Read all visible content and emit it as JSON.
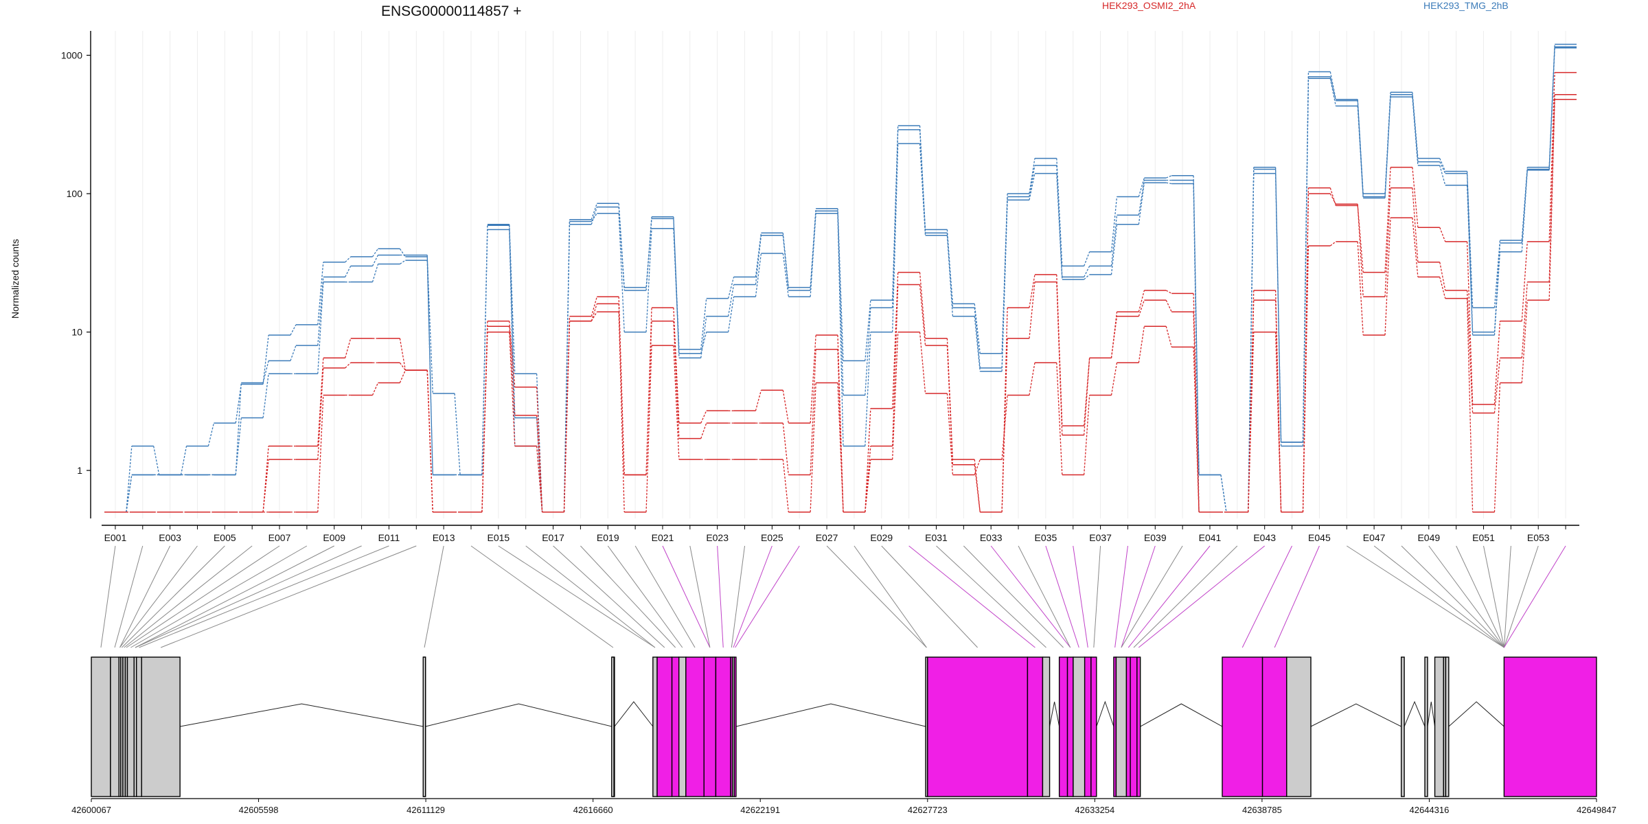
{
  "chart_data": {
    "type": "line",
    "title": "ENSG00000114857 +",
    "ylabel": "Normalized counts",
    "y_scale": "log",
    "ylim": [
      0.45,
      1500
    ],
    "y_ticks": [
      1,
      10,
      100,
      1000
    ],
    "y_tick_labels": [
      "1",
      "10",
      "100",
      "1000"
    ],
    "grid": "vertical-per-exon",
    "legend": [
      {
        "name": "HEK293_OSMI2_2hA",
        "color": "#D62728"
      },
      {
        "name": "HEK293_TMG_2hB",
        "color": "#3B7BB9"
      }
    ],
    "categories": [
      "E001",
      "E002",
      "E003",
      "E004",
      "E005",
      "E006",
      "E007",
      "E008",
      "E009",
      "E010",
      "E011",
      "E012",
      "E013",
      "E014",
      "E015",
      "E016",
      "E017",
      "E018",
      "E019",
      "E020",
      "E021",
      "E022",
      "E023",
      "E024",
      "E025",
      "E026",
      "E027",
      "E028",
      "E029",
      "E030",
      "E031",
      "E032",
      "E033",
      "E034",
      "E035",
      "E036",
      "E037",
      "E038",
      "E039",
      "E040",
      "E041",
      "E042",
      "E043",
      "E044",
      "E045",
      "E046",
      "E047",
      "E048",
      "E049",
      "E050",
      "E051",
      "E052",
      "E053",
      "E054"
    ],
    "x_tick_labels": [
      "E001",
      "E003",
      "E005",
      "E007",
      "E009",
      "E011",
      "E013",
      "E015",
      "E017",
      "E019",
      "E021",
      "E023",
      "E025",
      "E027",
      "E029",
      "E031",
      "E033",
      "E035",
      "E037",
      "E039",
      "E041",
      "E043",
      "E045",
      "E047",
      "E049",
      "E051",
      "E053"
    ],
    "series": [
      {
        "group": "HEK293_TMG_2hB",
        "color": "#3B7BB9",
        "values": [
          0.5,
          1.5,
          0.93,
          1.5,
          2.2,
          4.2,
          9.5,
          11.3,
          32,
          35,
          40,
          35,
          3.6,
          0.93,
          59,
          5,
          0.5,
          65,
          85,
          21,
          66,
          7.5,
          17.5,
          25,
          52,
          21,
          78,
          6.2,
          17,
          310,
          52,
          16,
          7,
          100,
          180,
          30,
          38,
          95,
          130,
          135,
          0.93,
          0.5,
          155,
          1.6,
          760,
          480,
          100,
          540,
          180,
          145,
          15,
          46,
          155,
          1200
        ]
      },
      {
        "group": "HEK293_TMG_2hB",
        "color": "#3B7BB9",
        "values": [
          0.5,
          0.93,
          0.93,
          0.93,
          0.93,
          4.3,
          6.2,
          8,
          25,
          30,
          36,
          36,
          0.93,
          0.93,
          60,
          2.4,
          0.5,
          60,
          80,
          20,
          68,
          6.5,
          13,
          22,
          50,
          20,
          75,
          3.5,
          15,
          290,
          55,
          15,
          5.5,
          95,
          160,
          25,
          30,
          70,
          125,
          125,
          0.93,
          0.5,
          150,
          1.5,
          700,
          470,
          95,
          520,
          170,
          140,
          10,
          44,
          150,
          1150
        ]
      },
      {
        "group": "HEK293_TMG_2hB",
        "color": "#3B7BB9",
        "values": [
          0.5,
          0.93,
          0.93,
          0.93,
          0.93,
          2.4,
          5,
          5,
          23,
          23,
          31,
          33,
          0.93,
          0.93,
          55,
          1.5,
          0.5,
          63,
          72,
          10,
          56,
          7,
          10,
          18,
          37,
          18,
          72,
          1.5,
          10,
          230,
          50,
          13,
          5.2,
          90,
          140,
          24,
          26,
          60,
          120,
          118,
          0.5,
          0.5,
          140,
          1.6,
          680,
          430,
          93,
          500,
          160,
          115,
          9.5,
          38,
          148,
          1130
        ]
      },
      {
        "group": "HEK293_OSMI2_2hA",
        "color": "#D62728",
        "values": [
          0.5,
          0.5,
          0.5,
          0.5,
          0.5,
          0.5,
          1.5,
          1.5,
          6.5,
          9,
          9,
          5.3,
          0.5,
          0.5,
          12,
          4,
          0.5,
          13,
          18,
          0.93,
          15,
          2.2,
          2.7,
          2.7,
          3.8,
          2.2,
          9.5,
          0.5,
          2.8,
          27,
          9,
          1.2,
          0.5,
          15,
          26,
          2.1,
          6.5,
          14,
          20,
          19,
          0.5,
          0.5,
          20,
          0.5,
          110,
          82,
          27,
          155,
          57,
          45,
          3,
          12,
          45,
          750
        ]
      },
      {
        "group": "HEK293_OSMI2_2hA",
        "color": "#D62728",
        "values": [
          0.5,
          0.5,
          0.5,
          0.5,
          0.5,
          0.5,
          1.2,
          1.2,
          5.5,
          6,
          6,
          5.3,
          0.5,
          0.5,
          11,
          2.5,
          0.5,
          12,
          16,
          0.93,
          12,
          1.7,
          2.2,
          2.2,
          2.2,
          0.93,
          7.5,
          0.5,
          1.5,
          22,
          8,
          1.1,
          0.5,
          9,
          23,
          1.8,
          6.5,
          13,
          17,
          14,
          0.5,
          0.5,
          17,
          0.5,
          100,
          84,
          18,
          110,
          32,
          20,
          2.6,
          6.5,
          23,
          520
        ]
      },
      {
        "group": "HEK293_OSMI2_2hA",
        "color": "#D62728",
        "values": [
          0.5,
          0.5,
          0.5,
          0.5,
          0.5,
          0.5,
          0.5,
          0.5,
          3.5,
          3.5,
          4.3,
          5.3,
          0.5,
          0.5,
          10,
          1.5,
          0.5,
          12,
          14,
          0.5,
          8,
          1.2,
          1.2,
          1.2,
          1.2,
          0.5,
          4.3,
          0.5,
          1.2,
          10,
          3.6,
          0.93,
          1.2,
          3.5,
          6,
          0.93,
          3.5,
          6,
          11,
          7.8,
          0.5,
          0.5,
          10,
          0.5,
          42,
          45,
          9.5,
          67,
          25,
          17.5,
          0.5,
          4.3,
          17,
          480
        ]
      }
    ],
    "gene_model": {
      "coordinate_labels": [
        "42600067",
        "42605598",
        "42611129",
        "42616660",
        "42622191",
        "42627723",
        "42633254",
        "42638785",
        "42644316",
        "42649847"
      ],
      "tested_color": "#CCCCCC",
      "significant_color": "#F01FE6",
      "significant_exons": [
        "E021",
        "E023",
        "E025",
        "E026",
        "E030",
        "E033",
        "E035",
        "E036",
        "E038",
        "E039",
        "E041",
        "E043",
        "E044",
        "E045",
        "E054"
      ]
    }
  }
}
